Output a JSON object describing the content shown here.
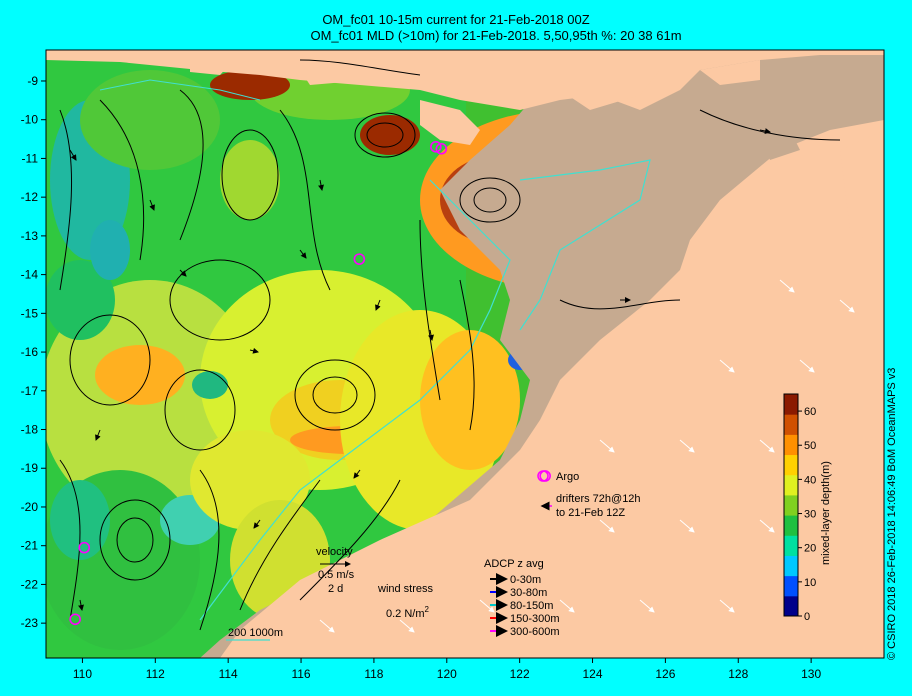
{
  "titles": {
    "line1": "OM_fc01 10-15m current for 21-Feb-2018 00Z",
    "line2": "OM_fc01 MLD (>10m) for 21-Feb-2018. 5,50,95th %: 20  38  61m"
  },
  "axes": {
    "x_ticks": [
      "110",
      "112",
      "114",
      "116",
      "118",
      "120",
      "122",
      "124",
      "126",
      "128",
      "130"
    ],
    "y_ticks": [
      "-9",
      "-10",
      "-11",
      "-12",
      "-13",
      "-14",
      "-15",
      "-16",
      "-17",
      "-18",
      "-19",
      "-20",
      "-21",
      "-22",
      "-23"
    ],
    "lon_range": [
      109,
      132
    ],
    "lat_range": [
      -8.2,
      -23.9
    ]
  },
  "colorbar": {
    "label": "mixed-layer depth(m)",
    "ticks": [
      "0",
      "10",
      "20",
      "30",
      "40",
      "50",
      "60"
    ],
    "range": [
      0,
      65
    ],
    "colors": [
      "#00008b",
      "#0050ff",
      "#00c8ff",
      "#00e0a0",
      "#20c040",
      "#80d020",
      "#e0f020",
      "#ffd000",
      "#ff9000",
      "#d05000",
      "#8b1a00"
    ]
  },
  "legend": {
    "argo_label": "Argo",
    "drifters_line1": "drifters 72h@12h",
    "drifters_line2": "to 21-Feb 12Z",
    "velocity_label": "velocity",
    "velocity_scale": "0.5 m/s",
    "velocity_time": "2 d",
    "wind_label": "wind stress",
    "wind_scale": "0.2 N/m",
    "wind_sup": "2",
    "adcp_title": "ADCP z avg",
    "adcp_items": [
      {
        "label": "0-30m",
        "color": "#000000"
      },
      {
        "label": "30-80m",
        "color": "#0000ff"
      },
      {
        "label": "80-150m",
        "color": "#00c8c8"
      },
      {
        "label": "150-300m",
        "color": "#ff0000"
      },
      {
        "label": "300-600m",
        "color": "#ff00ff"
      }
    ],
    "isobaths": "200  1000m"
  },
  "argo_floats": [
    [
      119.7,
      -10.7
    ],
    [
      119.85,
      -10.75
    ],
    [
      117.6,
      -13.6
    ],
    [
      110.05,
      -21.05
    ],
    [
      109.8,
      -22.9
    ],
    [
      122.7,
      -19.2
    ]
  ],
  "credit": "© CSIRO 2018    26-Feb-2018 14:06:49 BoM OceanMAPS v3",
  "colors": {
    "land": "#fcc9a3",
    "shelf": "#c6aa90",
    "frame": "#00ffff"
  }
}
